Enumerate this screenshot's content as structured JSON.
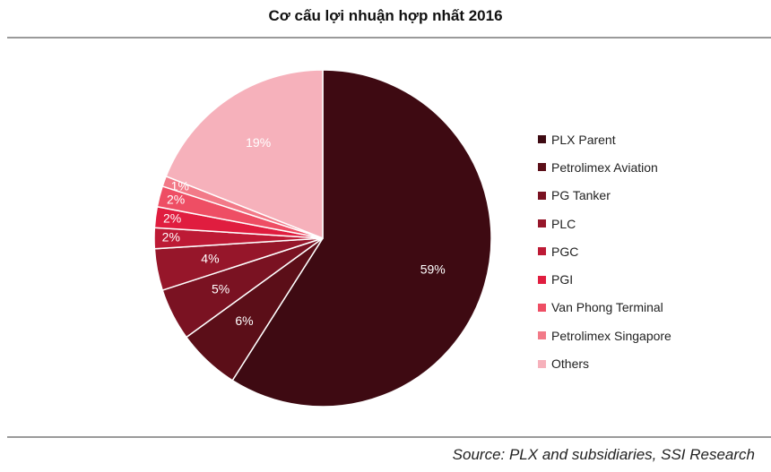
{
  "title": "Cơ cấu lợi nhuận hợp nhất 2016",
  "source": "Source: PLX and subsidiaries, SSI Research",
  "chart_data": {
    "type": "pie",
    "title": "Cơ cấu lợi nhuận hợp nhất 2016",
    "legend_position": "right",
    "slices": [
      {
        "name": "PLX Parent",
        "value": 59,
        "label": "59%",
        "color": "#3e0a12"
      },
      {
        "name": "Petrolimex Aviation",
        "value": 6,
        "label": "6%",
        "color": "#5b0e18"
      },
      {
        "name": "PG Tanker",
        "value": 5,
        "label": "5%",
        "color": "#7a1222"
      },
      {
        "name": "PLC",
        "value": 4,
        "label": "4%",
        "color": "#96162a"
      },
      {
        "name": "PGC",
        "value": 2,
        "label": "2%",
        "color": "#bd1a35"
      },
      {
        "name": "PGI",
        "value": 2,
        "label": "2%",
        "color": "#e01d3f"
      },
      {
        "name": "Van Phong Terminal",
        "value": 2,
        "label": "2%",
        "color": "#ee4e64"
      },
      {
        "name": "Petrolimex Singapore",
        "value": 1,
        "label": "1%",
        "color": "#f27a88"
      },
      {
        "name": "Others",
        "value": 19,
        "label": "19%",
        "color": "#f6b1bb"
      }
    ]
  }
}
